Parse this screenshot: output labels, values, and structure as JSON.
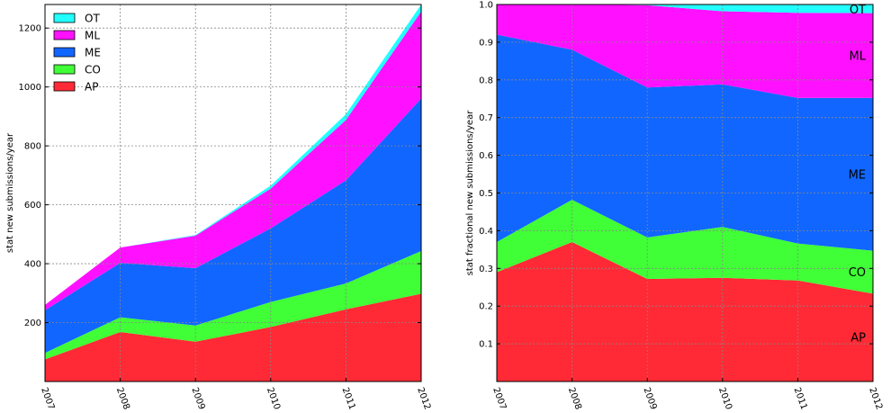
{
  "chart_data": [
    {
      "type": "area",
      "stacked": true,
      "x": [
        "2007",
        "2008",
        "2009",
        "2010",
        "2011",
        "2012"
      ],
      "ylabel": "stat new submissions/year",
      "xlabel": "",
      "ylim": [
        0,
        1280
      ],
      "yticks": [
        "200",
        "400",
        "600",
        "800",
        "1000",
        "1200"
      ],
      "grid": true,
      "legend": "top-left",
      "series": [
        {
          "name": "AP",
          "color": "#ff2a35",
          "values": [
            75,
            168,
            135,
            185,
            245,
            298
          ]
        },
        {
          "name": "CO",
          "color": "#40ff36",
          "values": [
            22,
            50,
            55,
            85,
            88,
            145
          ]
        },
        {
          "name": "ME",
          "color": "#1166ff",
          "values": [
            145,
            185,
            195,
            250,
            350,
            518
          ]
        },
        {
          "name": "ML",
          "color": "#ff11ff",
          "values": [
            18,
            52,
            110,
            135,
            205,
            295
          ]
        },
        {
          "name": "OT",
          "color": "#22ffff",
          "values": [
            0,
            0,
            2,
            10,
            20,
            30
          ]
        }
      ]
    },
    {
      "type": "area",
      "stacked": true,
      "x": [
        "2007",
        "2008",
        "2009",
        "2010",
        "2011",
        "2012"
      ],
      "ylabel": "stat fractional new submissions/year",
      "xlabel": "",
      "ylim": [
        0,
        1.0
      ],
      "yticks": [
        "0.1",
        "0.2",
        "0.3",
        "0.4",
        "0.5",
        "0.6",
        "0.7",
        "0.8",
        "0.9",
        "1.0"
      ],
      "grid": true,
      "legend": "inline-right",
      "series": [
        {
          "name": "AP",
          "color": "#ff2a35",
          "values": [
            0.29,
            0.37,
            0.272,
            0.275,
            0.268,
            0.233
          ]
        },
        {
          "name": "CO",
          "color": "#40ff36",
          "values": [
            0.08,
            0.112,
            0.11,
            0.135,
            0.098,
            0.114
          ]
        },
        {
          "name": "ME",
          "color": "#1166ff",
          "values": [
            0.55,
            0.398,
            0.398,
            0.378,
            0.386,
            0.405
          ]
        },
        {
          "name": "ML",
          "color": "#ff11ff",
          "values": [
            0.08,
            0.12,
            0.218,
            0.194,
            0.226,
            0.225
          ]
        },
        {
          "name": "OT",
          "color": "#22ffff",
          "values": [
            0.0,
            0.0,
            0.002,
            0.018,
            0.022,
            0.023
          ]
        }
      ]
    }
  ]
}
